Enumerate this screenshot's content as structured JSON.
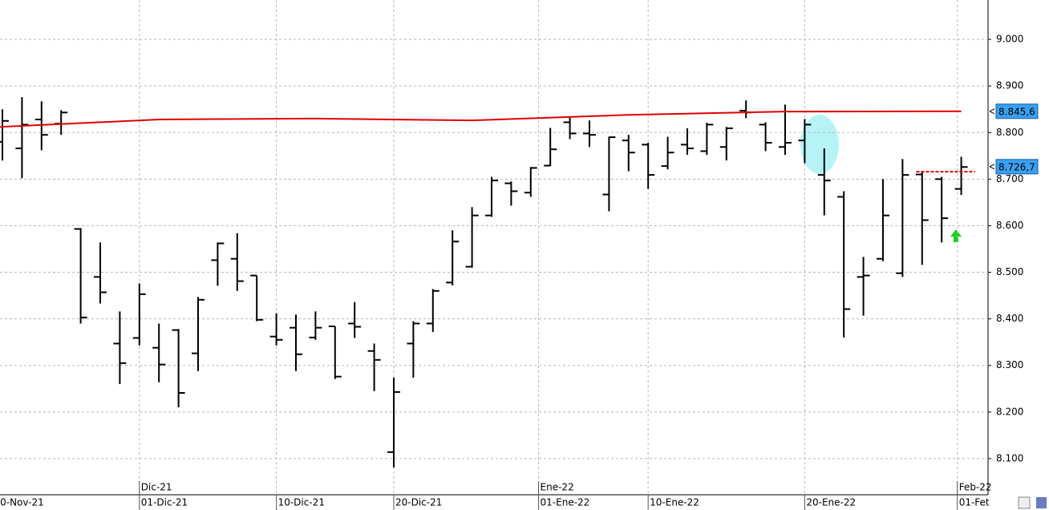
{
  "chart_data": {
    "type": "ohlc",
    "high": [
      8850,
      8876,
      8867,
      8848,
      8595,
      8564,
      8416,
      8476,
      8390,
      8378,
      8447,
      8564,
      8584,
      8493,
      8412,
      8409,
      8416,
      8384,
      8436,
      8347,
      8274,
      8395,
      8464,
      8590,
      8640,
      8705,
      8695,
      8726,
      8810,
      8834,
      8826,
      8791,
      8795,
      8778,
      8791,
      8809,
      8821,
      8812,
      8869,
      8822,
      8860,
      8829,
      8766,
      8674,
      8533,
      8700,
      8743,
      8717,
      8705,
      8748
    ],
    "low": [
      8740,
      8702,
      8762,
      8795,
      8390,
      8433,
      8260,
      8343,
      8264,
      8210,
      8288,
      8471,
      8460,
      8395,
      8343,
      8288,
      8355,
      8271,
      8359,
      8245,
      8081,
      8274,
      8372,
      8472,
      8510,
      8619,
      8643,
      8662,
      8728,
      8786,
      8769,
      8631,
      8717,
      8679,
      8721,
      8752,
      8752,
      8740,
      8831,
      8760,
      8752,
      8734,
      8622,
      8360,
      8407,
      8524,
      8490,
      8516,
      8564,
      8666
    ],
    "open": [
      8780,
      8766,
      8828,
      8819,
      8593,
      8490,
      8347,
      8359,
      8338,
      8376,
      8326,
      8526,
      8529,
      8493,
      8362,
      8381,
      8360,
      8384,
      8390,
      8331,
      8114,
      8347,
      8390,
      8478,
      8512,
      8622,
      8691,
      8671,
      8729,
      8822,
      8798,
      8667,
      8783,
      8774,
      8728,
      8774,
      8760,
      8769,
      8847,
      8817,
      8769,
      8783,
      8709,
      8662,
      8490,
      8529,
      8498,
      8710,
      8700,
      8679
    ],
    "close": [
      8825,
      8817,
      8795,
      8843,
      8403,
      8457,
      8305,
      8453,
      8302,
      8241,
      8441,
      8562,
      8481,
      8398,
      8355,
      8324,
      8381,
      8276,
      8383,
      8312,
      8243,
      8390,
      8460,
      8566,
      8622,
      8697,
      8674,
      8724,
      8764,
      8798,
      8795,
      8790,
      8757,
      8709,
      8757,
      8766,
      8817,
      8809,
      8843,
      8778,
      8778,
      8817,
      8697,
      8421,
      8493,
      8622,
      8709,
      8612,
      8616,
      8726
    ],
    "color": "#000000",
    "lines": [
      {
        "color": "#e00000",
        "dashed": false,
        "x": [
          -0.2,
          8,
          16,
          24,
          32,
          40,
          49
        ],
        "values": [
          8812,
          8828,
          8830,
          8826,
          8838,
          8845,
          8845.6
        ]
      },
      {
        "color": "#e00000",
        "dashed": true,
        "x": [
          46.7,
          49.7
        ],
        "values": [
          8716,
          8716
        ]
      }
    ],
    "price_labels": [
      {
        "value": 8845.6,
        "label": "8.845,6"
      },
      {
        "value": 8726.7,
        "label": "8.726,7"
      }
    ],
    "ylim": [
      8022.4,
      9084.5
    ],
    "yticks": [
      {
        "value": 9000,
        "label": "9.000"
      },
      {
        "value": 8900,
        "label": "8.900"
      },
      {
        "value": 8800,
        "label": "8.800"
      },
      {
        "value": 8700,
        "label": "8.700"
      },
      {
        "value": 8600,
        "label": "8.600"
      },
      {
        "value": 8500,
        "label": "8.500"
      },
      {
        "value": 8400,
        "label": "8.400"
      },
      {
        "value": 8300,
        "label": "8.300"
      },
      {
        "value": 8200,
        "label": "8.200"
      },
      {
        "value": 8100,
        "label": "8.100"
      }
    ],
    "xlim": [
      -0.123,
      50.37
    ],
    "xticks": [
      {
        "value": -0.2,
        "label": "0-Nov-21"
      },
      {
        "value": 7,
        "label": "01-Dic-21"
      },
      {
        "value": 14,
        "label": "10-Dic-21"
      },
      {
        "value": 20,
        "label": "20-Dic-21"
      },
      {
        "value": 27.4,
        "label": "01-Ene-22"
      },
      {
        "value": 33,
        "label": "10-Ene-22"
      },
      {
        "value": 41,
        "label": "20-Ene-22"
      },
      {
        "value": 48.8,
        "label": "01-Fet"
      }
    ],
    "month_ticks": [
      {
        "value": 7,
        "label": "Dic-21"
      },
      {
        "value": 27.4,
        "label": "Ene-22"
      },
      {
        "value": 48.8,
        "label": "Feb-22"
      }
    ],
    "grid": true
  }
}
